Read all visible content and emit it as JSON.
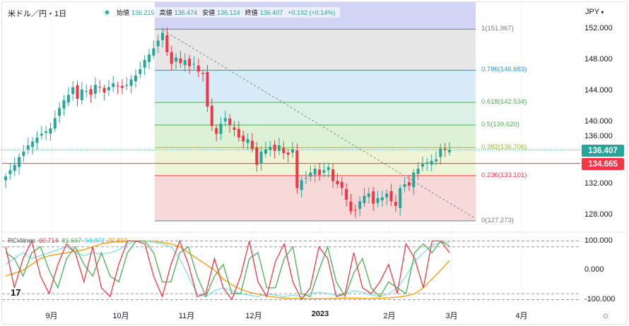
{
  "header": {
    "symbol": "米ドル／円・1日",
    "currency": "JPY",
    "currency_icon": "chevron-down-icon",
    "ohlc": [
      {
        "label": "始値",
        "value": "136.215"
      },
      {
        "label": "高値",
        "value": "136.474"
      },
      {
        "label": "安値",
        "value": "136.124"
      },
      {
        "label": "終値",
        "value": "136.407"
      }
    ],
    "change": "+0.192 (+0.14%)"
  },
  "price_badges": {
    "last": "136.407",
    "last_color": "#26a69a",
    "line": "134.665",
    "line_color": "#f23645"
  },
  "indicator": {
    "name": "RCI4lines",
    "values": [
      "60.714",
      "81.667",
      "94.872",
      "32.810"
    ],
    "colors": [
      "#f23645",
      "#4caf50",
      "#00e5ff",
      "#ff9800"
    ],
    "y_ticks": [
      "100.000",
      "0.000",
      "-100.000"
    ]
  },
  "chart_data": {
    "type": "candlestick",
    "title": "米ドル／円・1日",
    "y_ticks": [
      "152.000",
      "148.000",
      "144.000",
      "140.000",
      "136.000",
      "132.000",
      "128.000"
    ],
    "x_ticks": [
      "9月",
      "10月",
      "11月",
      "12月",
      "2023",
      "2月",
      "3月",
      "4月"
    ],
    "ylim": [
      126.5,
      153.5
    ],
    "closes": [
      133.0,
      133.8,
      134.5,
      135.5,
      136.2,
      137,
      137.5,
      138,
      138.5,
      138.8,
      139.2,
      140.5,
      141.8,
      142.8,
      143.5,
      144.5,
      143,
      144.2,
      144,
      143.5,
      144.8,
      144.5,
      143.8,
      144.5,
      145,
      144.6,
      144.4,
      144.8,
      145.5,
      146,
      146.8,
      148,
      148.7,
      149.5,
      150.5,
      151.5,
      149,
      147.5,
      148.3,
      147.6,
      148,
      147.2,
      147.5,
      146.5,
      146.2,
      142,
      139.5,
      138.5,
      139.8,
      140.5,
      139.6,
      139,
      138,
      137.5,
      137.8,
      136.5,
      134.5,
      136.2,
      136.5,
      136.8,
      136.3,
      137,
      136,
      135.8,
      136.5,
      131.5,
      132.5,
      132.8,
      133.5,
      134,
      133.2,
      133.8,
      134.2,
      132.4,
      132,
      131.5,
      130,
      128.5,
      128.6,
      129.8,
      130.5,
      130.8,
      129.5,
      130.2,
      130.3,
      130.8,
      129.8,
      129.2,
      131.5,
      132,
      131.8,
      133.5,
      134,
      134.6,
      134.8,
      135,
      135.2,
      136.6,
      136.4,
      136.407
    ],
    "fibonacci": [
      {
        "label": "1(151.967)",
        "value": 151.967,
        "color": "#787b86"
      },
      {
        "label": "0.786(146.683)",
        "value": 146.683,
        "color": "#2196f3"
      },
      {
        "label": "0.618(142.534)",
        "value": 142.534,
        "color": "#4caf50"
      },
      {
        "label": "0.5(139.620)",
        "value": 139.62,
        "color": "#4caf50"
      },
      {
        "label": "0.382(136.706)",
        "value": 136.706,
        "color": "#9fb32b"
      },
      {
        "label": "0.236(133.101)",
        "value": 133.101,
        "color": "#f23645"
      },
      {
        "label": "0(127.273)",
        "value": 127.273,
        "color": "#787b86"
      }
    ],
    "horizontal_line": 134.665,
    "rci": {
      "red": [
        80,
        -60,
        40,
        100,
        -20,
        -80,
        20,
        90,
        60,
        -40,
        80,
        -60,
        -90,
        20,
        100,
        100,
        90,
        -20,
        -90,
        20,
        100,
        20,
        -90,
        -80,
        40,
        -60,
        -100,
        -20,
        100,
        -40,
        -90,
        30,
        90,
        -40,
        -100,
        -60,
        80,
        40,
        -90,
        -80,
        60,
        -60,
        -80,
        -40,
        20,
        -80,
        90,
        40,
        -60,
        100,
        100,
        60
      ],
      "green": [
        60,
        40,
        -20,
        60,
        80,
        0,
        -60,
        40,
        80,
        20,
        -20,
        60,
        -20,
        -40,
        60,
        100,
        100,
        60,
        -40,
        -40,
        60,
        80,
        -20,
        -90,
        -20,
        20,
        -80,
        -80,
        40,
        60,
        -60,
        -60,
        40,
        80,
        -80,
        -90,
        0,
        80,
        -40,
        -90,
        -10,
        40,
        -60,
        -90,
        -40,
        -60,
        -80,
        60,
        90,
        60,
        100,
        82
      ],
      "cyan": [
        20,
        40,
        60,
        40,
        50,
        60,
        70,
        80,
        60,
        50,
        60,
        55,
        60,
        70,
        90,
        98,
        100,
        95,
        90,
        80,
        40,
        -20,
        -80,
        -90,
        -70,
        -60,
        -70,
        -80,
        -85,
        -90,
        -80,
        -85,
        -90,
        -85,
        -90,
        -80,
        -75,
        -80,
        -85,
        -80,
        -70,
        -75,
        -85,
        -90,
        -80,
        -60,
        -20,
        30,
        60,
        85,
        95,
        95
      ],
      "orange": [
        -20,
        -10,
        0,
        20,
        40,
        50,
        55,
        60,
        65,
        70,
        80,
        90,
        95,
        98,
        100,
        100,
        100,
        100,
        95,
        90,
        80,
        60,
        40,
        20,
        0,
        -30,
        -50,
        -65,
        -75,
        -82,
        -88,
        -92,
        -95,
        -96,
        -96,
        -97,
        -97,
        -96,
        -96,
        -95,
        -95,
        -96,
        -96,
        -95,
        -94,
        -92,
        -88,
        -80,
        -60,
        -30,
        0,
        33
      ]
    }
  }
}
